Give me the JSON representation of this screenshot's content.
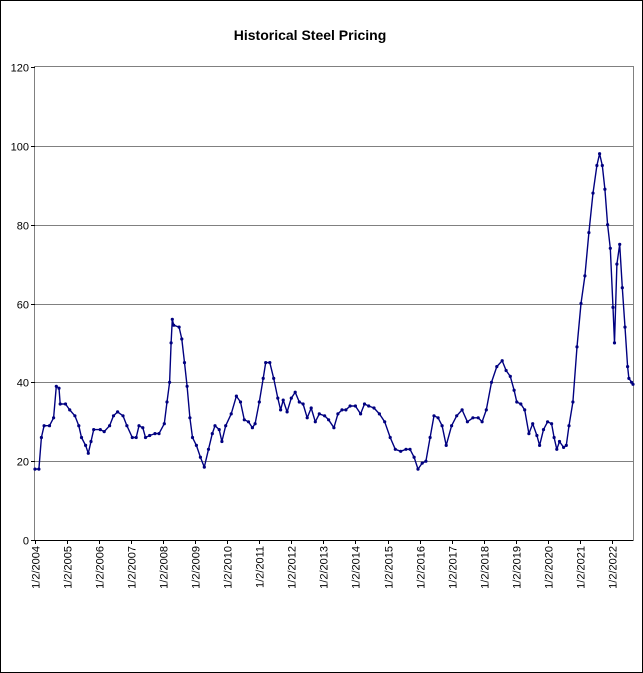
{
  "chart_data": {
    "type": "line",
    "title": "Historical Steel Pricing",
    "xlabel": "",
    "ylabel": "",
    "ylim": [
      0,
      120
    ],
    "yticks": [
      "0",
      "20",
      "40",
      "60",
      "80",
      "100",
      "120"
    ],
    "xlim": [
      "2004-01-02",
      "2022-08-31"
    ],
    "xticks": [
      "1/2/2004",
      "1/2/2005",
      "1/2/2006",
      "1/2/2007",
      "1/2/2008",
      "1/2/2009",
      "1/2/2010",
      "1/2/2011",
      "1/2/2012",
      "1/2/2013",
      "1/2/2014",
      "1/2/2015",
      "1/2/2016",
      "1/2/2017",
      "1/2/2018",
      "1/2/2019",
      "1/2/2020",
      "1/2/2021",
      "1/2/2022"
    ],
    "grid": "horizontal",
    "legend": "none",
    "series": [
      {
        "color": "#000080",
        "points": [
          [
            "2004-01-02",
            18
          ],
          [
            "2004-02-15",
            18
          ],
          [
            "2004-03-15",
            26
          ],
          [
            "2004-04-15",
            29
          ],
          [
            "2004-06-15",
            29
          ],
          [
            "2004-08-01",
            31
          ],
          [
            "2004-09-01",
            39
          ],
          [
            "2004-10-01",
            38.5
          ],
          [
            "2004-10-15",
            34.5
          ],
          [
            "2004-12-15",
            34.5
          ],
          [
            "2005-02-01",
            33
          ],
          [
            "2005-04-01",
            31.5
          ],
          [
            "2005-05-15",
            29
          ],
          [
            "2005-06-15",
            26
          ],
          [
            "2005-08-01",
            24
          ],
          [
            "2005-09-01",
            22
          ],
          [
            "2005-10-01",
            25
          ],
          [
            "2005-11-01",
            28
          ],
          [
            "2006-01-15",
            28
          ],
          [
            "2006-03-01",
            27.5
          ],
          [
            "2006-05-01",
            29
          ],
          [
            "2006-06-15",
            31.5
          ],
          [
            "2006-08-01",
            32.5
          ],
          [
            "2006-10-01",
            31.5
          ],
          [
            "2006-11-15",
            29
          ],
          [
            "2007-01-15",
            26
          ],
          [
            "2007-03-01",
            26
          ],
          [
            "2007-04-01",
            29
          ],
          [
            "2007-05-15",
            28.5
          ],
          [
            "2007-06-15",
            26
          ],
          [
            "2007-08-01",
            26.5
          ],
          [
            "2007-10-01",
            27
          ],
          [
            "2007-11-15",
            27
          ],
          [
            "2008-01-15",
            29.5
          ],
          [
            "2008-02-15",
            35
          ],
          [
            "2008-03-15",
            40
          ],
          [
            "2008-04-01",
            50
          ],
          [
            "2008-04-15",
            56
          ],
          [
            "2008-05-01",
            54.5
          ],
          [
            "2008-07-01",
            54
          ],
          [
            "2008-08-01",
            51
          ],
          [
            "2008-09-01",
            45
          ],
          [
            "2008-10-01",
            39
          ],
          [
            "2008-11-01",
            31
          ],
          [
            "2008-12-01",
            26
          ],
          [
            "2009-01-15",
            24
          ],
          [
            "2009-03-01",
            21
          ],
          [
            "2009-04-15",
            18.5
          ],
          [
            "2009-06-01",
            23
          ],
          [
            "2009-07-15",
            27
          ],
          [
            "2009-08-15",
            29
          ],
          [
            "2009-10-01",
            28
          ],
          [
            "2009-11-01",
            25
          ],
          [
            "2009-12-15",
            29
          ],
          [
            "2010-02-15",
            32
          ],
          [
            "2010-04-15",
            36.5
          ],
          [
            "2010-06-01",
            35
          ],
          [
            "2010-07-15",
            30.5
          ],
          [
            "2010-09-01",
            30
          ],
          [
            "2010-10-15",
            28.5
          ],
          [
            "2010-11-15",
            29.5
          ],
          [
            "2011-01-01",
            35
          ],
          [
            "2011-02-15",
            41
          ],
          [
            "2011-03-15",
            45
          ],
          [
            "2011-05-01",
            45
          ],
          [
            "2011-06-15",
            41
          ],
          [
            "2011-08-01",
            36
          ],
          [
            "2011-09-01",
            33
          ],
          [
            "2011-10-01",
            35.5
          ],
          [
            "2011-11-15",
            32.5
          ],
          [
            "2012-01-01",
            36
          ],
          [
            "2012-02-15",
            37.5
          ],
          [
            "2012-04-01",
            35
          ],
          [
            "2012-05-15",
            34.5
          ],
          [
            "2012-07-01",
            31
          ],
          [
            "2012-08-15",
            33.5
          ],
          [
            "2012-10-01",
            30
          ],
          [
            "2012-11-15",
            32
          ],
          [
            "2013-01-15",
            31.5
          ],
          [
            "2013-03-01",
            30.5
          ],
          [
            "2013-05-01",
            28.5
          ],
          [
            "2013-06-15",
            32
          ],
          [
            "2013-08-01",
            33
          ],
          [
            "2013-09-15",
            33
          ],
          [
            "2013-11-01",
            34
          ],
          [
            "2014-01-01",
            34
          ],
          [
            "2014-03-01",
            32
          ],
          [
            "2014-04-15",
            34.5
          ],
          [
            "2014-06-01",
            34
          ],
          [
            "2014-08-01",
            33.5
          ],
          [
            "2014-10-01",
            32
          ],
          [
            "2014-12-01",
            30
          ],
          [
            "2015-02-01",
            26
          ],
          [
            "2015-04-01",
            23
          ],
          [
            "2015-06-01",
            22.5
          ],
          [
            "2015-08-01",
            23
          ],
          [
            "2015-09-15",
            23
          ],
          [
            "2015-11-01",
            21
          ],
          [
            "2015-12-15",
            18
          ],
          [
            "2016-02-01",
            19.5
          ],
          [
            "2016-03-15",
            20
          ],
          [
            "2016-05-01",
            26
          ],
          [
            "2016-06-15",
            31.5
          ],
          [
            "2016-08-01",
            31
          ],
          [
            "2016-09-15",
            29
          ],
          [
            "2016-11-01",
            24
          ],
          [
            "2017-01-01",
            29
          ],
          [
            "2017-03-01",
            31.5
          ],
          [
            "2017-05-01",
            33
          ],
          [
            "2017-07-01",
            30
          ],
          [
            "2017-09-01",
            31
          ],
          [
            "2017-11-01",
            31
          ],
          [
            "2017-12-15",
            30
          ],
          [
            "2018-02-01",
            33
          ],
          [
            "2018-04-01",
            40
          ],
          [
            "2018-06-01",
            44
          ],
          [
            "2018-08-01",
            45.5
          ],
          [
            "2018-09-15",
            43
          ],
          [
            "2018-11-01",
            41.5
          ],
          [
            "2018-12-15",
            38
          ],
          [
            "2019-01-15",
            35
          ],
          [
            "2019-03-01",
            34.5
          ],
          [
            "2019-04-15",
            33
          ],
          [
            "2019-06-01",
            27
          ],
          [
            "2019-07-15",
            29.5
          ],
          [
            "2019-09-01",
            26.5
          ],
          [
            "2019-10-01",
            24
          ],
          [
            "2019-11-15",
            28
          ],
          [
            "2020-01-01",
            30
          ],
          [
            "2020-02-15",
            29.5
          ],
          [
            "2020-03-15",
            26
          ],
          [
            "2020-04-15",
            23
          ],
          [
            "2020-05-15",
            25
          ],
          [
            "2020-07-01",
            23.5
          ],
          [
            "2020-08-01",
            24
          ],
          [
            "2020-09-01",
            29
          ],
          [
            "2020-10-15",
            35
          ],
          [
            "2020-12-01",
            49
          ],
          [
            "2021-01-15",
            60
          ],
          [
            "2021-03-01",
            67
          ],
          [
            "2021-04-15",
            78
          ],
          [
            "2021-06-01",
            88
          ],
          [
            "2021-07-15",
            95
          ],
          [
            "2021-08-15",
            98
          ],
          [
            "2021-09-15",
            95
          ],
          [
            "2021-10-15",
            89
          ],
          [
            "2021-11-15",
            80
          ],
          [
            "2021-12-15",
            74
          ],
          [
            "2022-01-15",
            59
          ],
          [
            "2022-02-01",
            50
          ],
          [
            "2022-03-01",
            70
          ],
          [
            "2022-04-01",
            75
          ],
          [
            "2022-05-01",
            64
          ],
          [
            "2022-06-01",
            54
          ],
          [
            "2022-07-01",
            44
          ],
          [
            "2022-07-15",
            41
          ],
          [
            "2022-08-15",
            40
          ],
          [
            "2022-08-31",
            39.5
          ]
        ]
      }
    ]
  }
}
